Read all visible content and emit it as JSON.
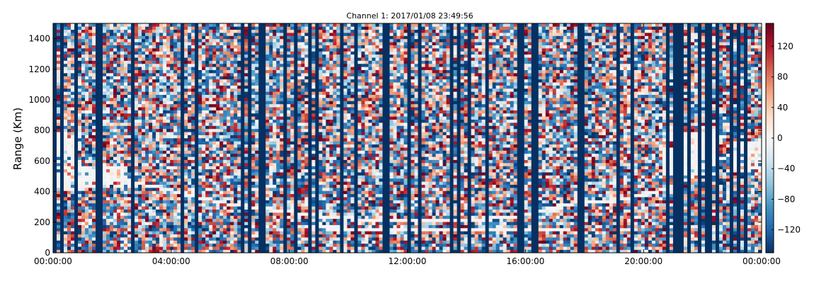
{
  "chart_data": {
    "type": "heatmap",
    "title": "Channel 1: 2017/01/08 23:49:56",
    "ylabel": "Range (Km)",
    "xlabel": "",
    "x_ticks": [
      "00:00:00",
      "04:00:00",
      "08:00:00",
      "12:00:00",
      "16:00:00",
      "20:00:00",
      "00:00:00"
    ],
    "x_range_hours": [
      0,
      24
    ],
    "y_ticks": [
      0,
      200,
      400,
      600,
      800,
      1000,
      1200,
      1400
    ],
    "ylim": [
      0,
      1500
    ],
    "colorbar": {
      "ticks": [
        120,
        80,
        40,
        0,
        -40,
        -80,
        -120
      ],
      "range": [
        -150,
        150
      ],
      "colormap": [
        "#053061",
        "#2166ac",
        "#4393c3",
        "#92c5de",
        "#d1e5f0",
        "#f7f7f7",
        "#fddbc7",
        "#f4a582",
        "#d6604d",
        "#b2182b",
        "#67001f"
      ]
    },
    "features": {
      "trace_primary_range_km": [
        [
          0,
          470
        ],
        [
          1.5,
          480
        ],
        [
          2.5,
          470
        ],
        [
          4,
          410
        ],
        [
          5,
          360
        ],
        [
          6,
          320
        ],
        [
          7,
          295
        ],
        [
          8,
          270
        ],
        [
          9,
          245
        ],
        [
          10,
          225
        ],
        [
          11,
          215
        ],
        [
          12,
          210
        ],
        [
          13,
          205
        ],
        [
          14,
          210
        ],
        [
          15,
          225
        ],
        [
          16,
          250
        ],
        [
          17,
          300
        ],
        [
          18,
          340
        ],
        [
          19,
          340
        ],
        [
          20,
          380
        ],
        [
          21,
          430
        ],
        [
          22,
          560
        ],
        [
          23,
          650
        ],
        [
          24,
          720
        ]
      ],
      "trace_secondary_range_km": [
        [
          8.5,
          170
        ],
        [
          10,
          160
        ],
        [
          12,
          155
        ],
        [
          14,
          150
        ],
        [
          16,
          155
        ],
        [
          17.5,
          160
        ]
      ],
      "dense_band_range_km": [
        [
          0,
          400,
          800
        ],
        [
          1.5,
          420,
          560
        ],
        [
          21.5,
          500,
          800
        ],
        [
          24,
          520,
          720
        ]
      ]
    }
  }
}
